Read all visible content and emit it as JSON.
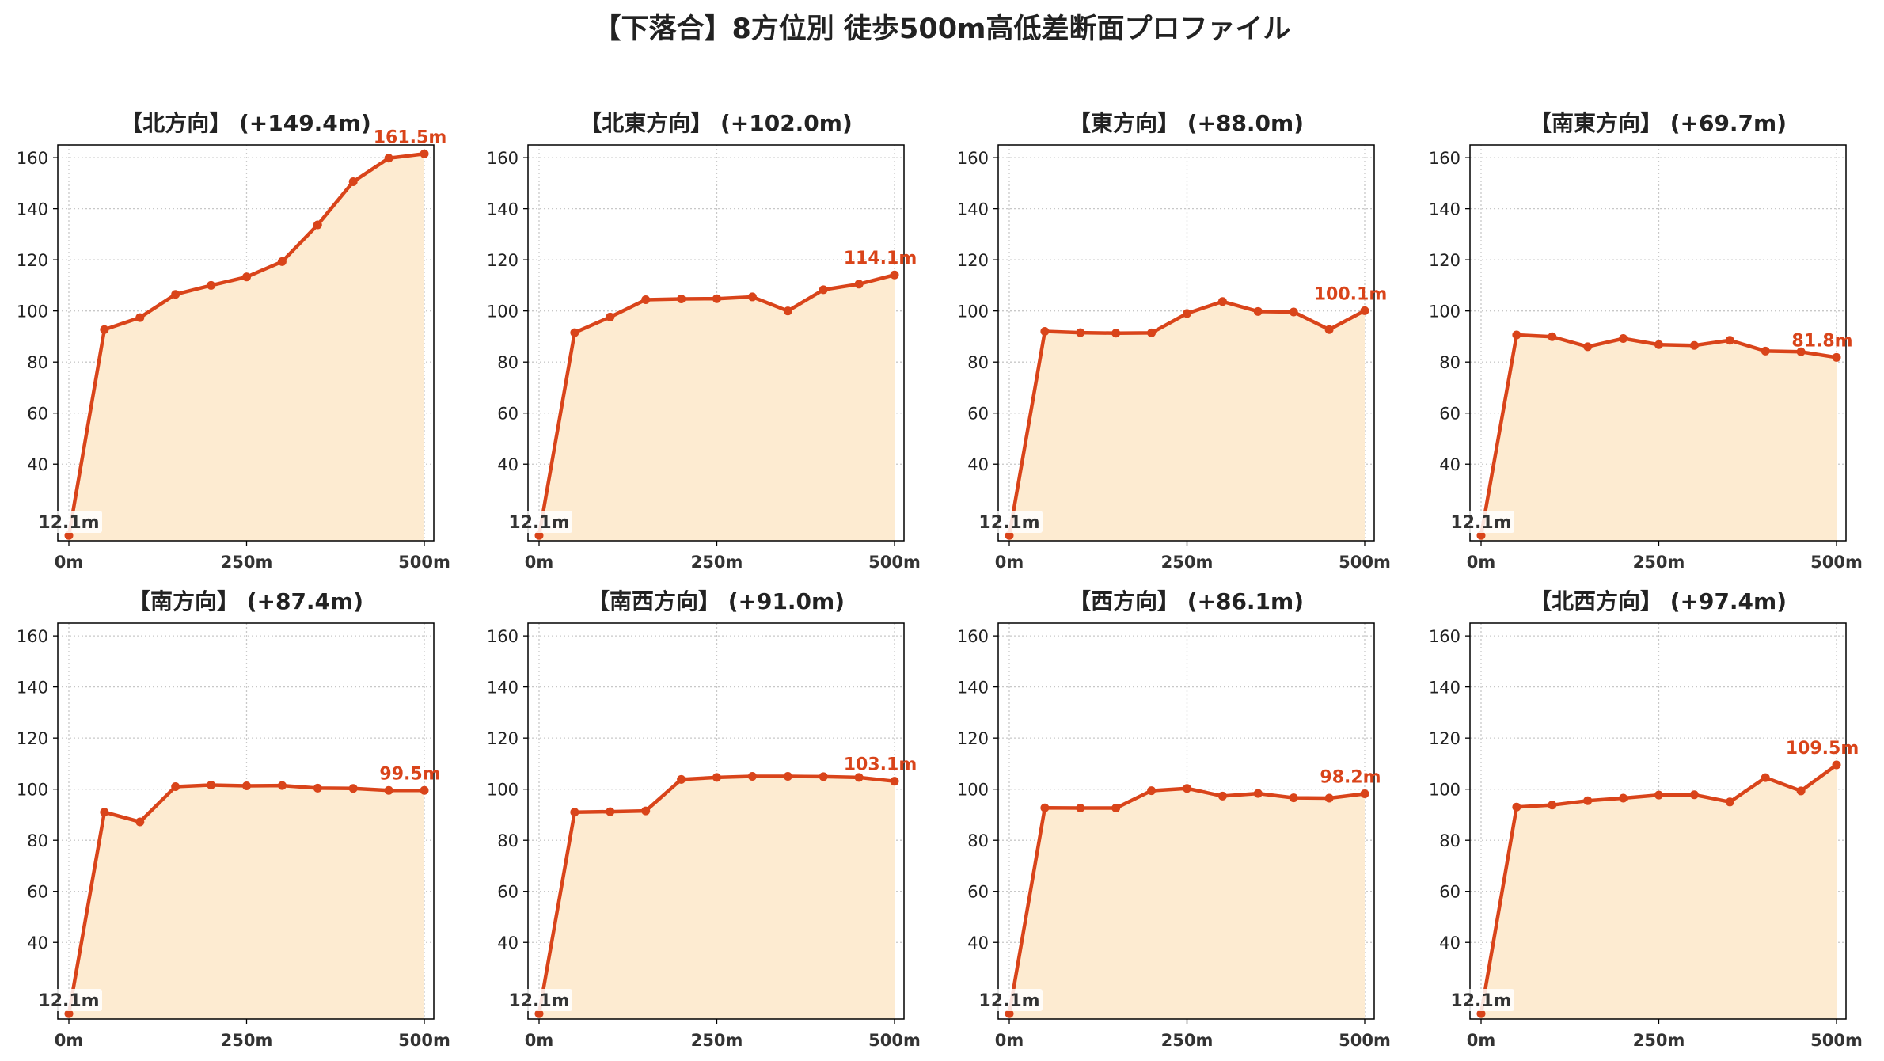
{
  "title": "【下落合】8方位別 徒歩500m高低差断面プロファイル",
  "colors": {
    "line": "#d9441a",
    "fill": "#fdebd1",
    "axis": "#000000",
    "grid": "#c8c8c8",
    "start_label": "#333333"
  },
  "chart_data": [
    {
      "type": "area",
      "title": "【北方向】 (+149.4m)",
      "x": [
        0,
        50,
        100,
        150,
        200,
        250,
        300,
        350,
        400,
        450,
        500
      ],
      "values": [
        12.1,
        92.7,
        97.4,
        106.5,
        110.0,
        113.3,
        119.3,
        133.7,
        150.6,
        159.8,
        161.5
      ],
      "start_label": "12.1m",
      "end_label": "161.5m",
      "xticks": [
        "0m",
        "250m",
        "500m"
      ],
      "yticks": [
        "40",
        "60",
        "80",
        "100",
        "120",
        "140",
        "160"
      ],
      "ylim": [
        10,
        165
      ],
      "grid": true
    },
    {
      "type": "area",
      "title": "【北東方向】 (+102.0m)",
      "x": [
        0,
        50,
        100,
        150,
        200,
        250,
        300,
        350,
        400,
        450,
        500
      ],
      "values": [
        12.1,
        91.5,
        97.6,
        104.4,
        104.7,
        104.8,
        105.5,
        100.0,
        108.3,
        110.5,
        114.1
      ],
      "start_label": "12.1m",
      "end_label": "114.1m",
      "xticks": [
        "0m",
        "250m",
        "500m"
      ],
      "yticks": [
        "40",
        "60",
        "80",
        "100",
        "120",
        "140",
        "160"
      ],
      "ylim": [
        10,
        165
      ],
      "grid": true
    },
    {
      "type": "area",
      "title": "【東方向】 (+88.0m)",
      "x": [
        0,
        50,
        100,
        150,
        200,
        250,
        300,
        350,
        400,
        450,
        500
      ],
      "values": [
        12.1,
        92.0,
        91.5,
        91.3,
        91.4,
        99.0,
        103.7,
        99.8,
        99.6,
        92.7,
        100.1
      ],
      "start_label": "12.1m",
      "end_label": "100.1m",
      "xticks": [
        "0m",
        "250m",
        "500m"
      ],
      "yticks": [
        "40",
        "60",
        "80",
        "100",
        "120",
        "140",
        "160"
      ],
      "ylim": [
        10,
        165
      ],
      "grid": true
    },
    {
      "type": "area",
      "title": "【南東方向】 (+69.7m)",
      "x": [
        0,
        50,
        100,
        150,
        200,
        250,
        300,
        350,
        400,
        450,
        500
      ],
      "values": [
        12.1,
        90.6,
        89.9,
        86.0,
        89.2,
        86.8,
        86.5,
        88.5,
        84.3,
        84.0,
        81.8
      ],
      "start_label": "12.1m",
      "end_label": "81.8m",
      "xticks": [
        "0m",
        "250m",
        "500m"
      ],
      "yticks": [
        "40",
        "60",
        "80",
        "100",
        "120",
        "140",
        "160"
      ],
      "ylim": [
        10,
        165
      ],
      "grid": true
    },
    {
      "type": "area",
      "title": "【南方向】 (+87.4m)",
      "x": [
        0,
        50,
        100,
        150,
        200,
        250,
        300,
        350,
        400,
        450,
        500
      ],
      "values": [
        12.1,
        91.0,
        87.2,
        101.0,
        101.6,
        101.3,
        101.4,
        100.4,
        100.3,
        99.5,
        99.5
      ],
      "start_label": "12.1m",
      "end_label": "99.5m",
      "xticks": [
        "0m",
        "250m",
        "500m"
      ],
      "yticks": [
        "40",
        "60",
        "80",
        "100",
        "120",
        "140",
        "160"
      ],
      "ylim": [
        10,
        165
      ],
      "grid": true
    },
    {
      "type": "area",
      "title": "【南西方向】 (+91.0m)",
      "x": [
        0,
        50,
        100,
        150,
        200,
        250,
        300,
        350,
        400,
        450,
        500
      ],
      "values": [
        12.1,
        91.0,
        91.2,
        91.5,
        103.8,
        104.6,
        105.0,
        105.0,
        104.9,
        104.6,
        103.1
      ],
      "start_label": "12.1m",
      "end_label": "103.1m",
      "xticks": [
        "0m",
        "250m",
        "500m"
      ],
      "yticks": [
        "40",
        "60",
        "80",
        "100",
        "120",
        "140",
        "160"
      ],
      "ylim": [
        10,
        165
      ],
      "grid": true
    },
    {
      "type": "area",
      "title": "【西方向】 (+86.1m)",
      "x": [
        0,
        50,
        100,
        150,
        200,
        250,
        300,
        350,
        400,
        450,
        500
      ],
      "values": [
        12.1,
        92.7,
        92.6,
        92.6,
        99.4,
        100.3,
        97.3,
        98.3,
        96.6,
        96.5,
        98.2
      ],
      "start_label": "12.1m",
      "end_label": "98.2m",
      "xticks": [
        "0m",
        "250m",
        "500m"
      ],
      "yticks": [
        "40",
        "60",
        "80",
        "100",
        "120",
        "140",
        "160"
      ],
      "ylim": [
        10,
        165
      ],
      "grid": true
    },
    {
      "type": "area",
      "title": "【北西方向】 (+97.4m)",
      "x": [
        0,
        50,
        100,
        150,
        200,
        250,
        300,
        350,
        400,
        450,
        500
      ],
      "values": [
        12.1,
        93.0,
        93.8,
        95.5,
        96.5,
        97.7,
        97.8,
        95.0,
        104.5,
        99.3,
        109.5
      ],
      "start_label": "12.1m",
      "end_label": "109.5m",
      "xticks": [
        "0m",
        "250m",
        "500m"
      ],
      "yticks": [
        "40",
        "60",
        "80",
        "100",
        "120",
        "140",
        "160"
      ],
      "ylim": [
        10,
        165
      ],
      "grid": true
    }
  ]
}
